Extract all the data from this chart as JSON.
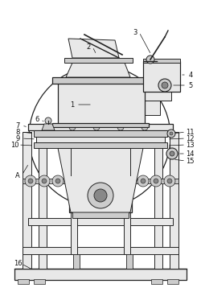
{
  "bg_color": "#ffffff",
  "lc": "#444444",
  "dc": "#222222",
  "fg": "#cccccc",
  "fl": "#e8e8e8",
  "fd": "#888888",
  "figsize": [
    2.5,
    3.58
  ],
  "dpi": 100,
  "label_fs": 6.0,
  "label_color": "#111111"
}
